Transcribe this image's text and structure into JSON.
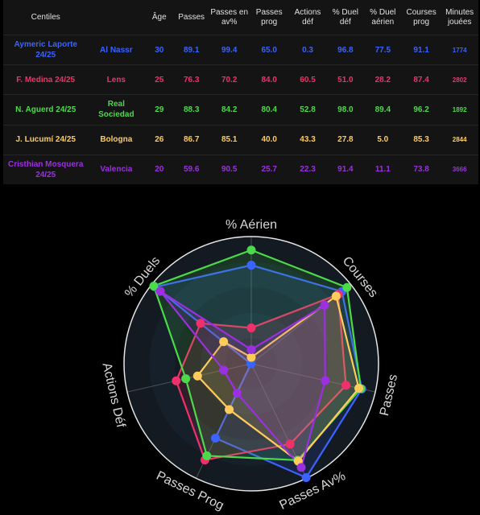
{
  "table": {
    "headers": [
      "Centiles",
      "Âge",
      "Passes",
      "Passes en av%",
      "Passes prog",
      "Actions déf",
      "% Duel déf",
      "% Duel aérien",
      "Courses prog",
      "Minutes jouées"
    ],
    "rows": [
      {
        "player": "Aymeric Laporte 24/25",
        "team": "Al Nassr",
        "age": "30",
        "passes": "89.1",
        "passes_av": "99.4",
        "passes_prog": "65.0",
        "actions_def": "0.3",
        "duel_def": "96.8",
        "duel_aerien": "77.5",
        "courses_prog": "91.1",
        "minutes": "1774",
        "color": "#3a63ff"
      },
      {
        "player": "F. Medina 24/25",
        "team": "Lens",
        "age": "25",
        "passes": "76.3",
        "passes_av": "70.2",
        "passes_prog": "84.0",
        "actions_def": "60.5",
        "duel_def": "51.0",
        "duel_aerien": "28.2",
        "courses_prog": "87.4",
        "minutes": "2802",
        "color": "#f0306b"
      },
      {
        "player": "N. Aguerd 24/25",
        "team": "Real Sociedad",
        "age": "29",
        "passes": "88.3",
        "passes_av": "84.2",
        "passes_prog": "80.4",
        "actions_def": "52.8",
        "duel_def": "98.0",
        "duel_aerien": "89.4",
        "courses_prog": "96.2",
        "minutes": "1892",
        "color": "#4cd94a"
      },
      {
        "player": "J. Lucumí 24/25",
        "team": "Bologna",
        "age": "26",
        "passes": "86.7",
        "passes_av": "85.1",
        "passes_prog": "40.0",
        "actions_def": "43.3",
        "duel_def": "27.8",
        "duel_aerien": "5.0",
        "courses_prog": "85.3",
        "minutes": "2844",
        "color": "#ffcc5c"
      },
      {
        "player": "Cristhian Mosquera 24/25",
        "team": "Valencia",
        "age": "20",
        "passes": "59.6",
        "passes_av": "90.5",
        "passes_prog": "25.7",
        "actions_def": "22.3",
        "duel_def": "91.4",
        "duel_aerien": "11.1",
        "courses_prog": "73.8",
        "minutes": "3666",
        "color": "#9b30e0"
      }
    ]
  },
  "chart_data": {
    "type": "radar",
    "axes": [
      "% Aérien",
      "Courses",
      "Passes",
      "Passes Av%",
      "Passes Prog",
      "Actions Déf",
      "% Duels"
    ],
    "range": [
      0,
      100
    ],
    "series": [
      {
        "name": "Aymeric Laporte 24/25",
        "color": "#3a63ff",
        "values": [
          77.5,
          91.1,
          89.1,
          99.4,
          65.0,
          0.3,
          96.8
        ]
      },
      {
        "name": "F. Medina 24/25",
        "color": "#f0306b",
        "values": [
          28.2,
          87.4,
          76.3,
          70.2,
          84.0,
          60.5,
          51.0
        ]
      },
      {
        "name": "N. Aguerd 24/25",
        "color": "#4cd94a",
        "values": [
          89.4,
          96.2,
          88.3,
          84.2,
          80.4,
          52.8,
          98.0
        ]
      },
      {
        "name": "J. Lucumí 24/25",
        "color": "#ffcc5c",
        "values": [
          5.0,
          85.3,
          86.7,
          85.1,
          40.0,
          43.3,
          27.8
        ]
      },
      {
        "name": "Cristhian Mosquera 24/25",
        "color": "#9b30e0",
        "values": [
          11.1,
          73.8,
          59.6,
          90.5,
          25.7,
          22.3,
          91.4
        ]
      }
    ]
  }
}
